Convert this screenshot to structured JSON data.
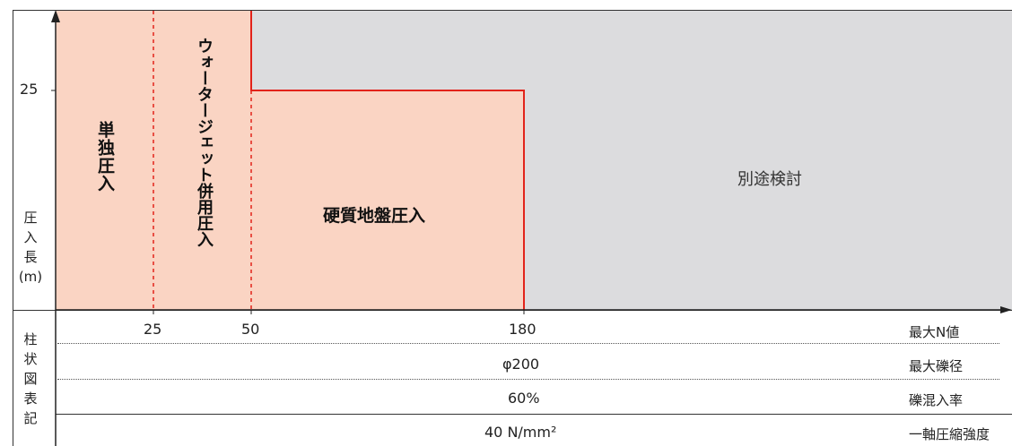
{
  "y_axis": {
    "tick_label": "25",
    "caption_chars": [
      "圧",
      "入",
      "長",
      "(m)"
    ]
  },
  "regions": {
    "single": "単独圧入",
    "waterjet": "ウォータージェット併用圧入",
    "hard_ground": "硬質地盤圧入",
    "separate": "別途検討"
  },
  "x_axis": {
    "ticks": [
      "25",
      "50",
      "180"
    ],
    "row_label": "最大N値"
  },
  "table": {
    "side_label_chars": [
      "柱",
      "状",
      "図",
      "表",
      "記"
    ],
    "rows": [
      {
        "value": "φ200",
        "label": "最大礫径"
      },
      {
        "value": "60%",
        "label": "礫混入率"
      },
      {
        "value": "40 N/mm²",
        "label": "一軸圧縮強度"
      }
    ]
  },
  "colors": {
    "applicable_fill": "#fad4c3",
    "separate_fill": "#dcdcde",
    "boundary_red": "#e2231a"
  }
}
